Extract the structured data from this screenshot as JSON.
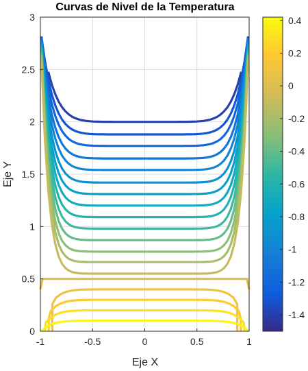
{
  "chart_data": {
    "type": "contour",
    "title": "Curvas de Nivel de la Temperatura",
    "xlabel": "Eje X",
    "ylabel": "Eje Y",
    "xlim": [
      -1,
      1
    ],
    "ylim": [
      0,
      3
    ],
    "xticks": [
      -1,
      -0.5,
      0,
      0.5,
      1
    ],
    "yticks": [
      0,
      0.5,
      1,
      1.5,
      2,
      2.5,
      3
    ],
    "xtick_labels": [
      "-1",
      "-0.5",
      "0",
      "0.5",
      "1"
    ],
    "ytick_labels": [
      "0",
      "0.5",
      "1",
      "1.5",
      "2",
      "2.5",
      "3"
    ],
    "grid": true,
    "colormap": "parula",
    "colorbar": {
      "limits": [
        -1.5,
        0.42
      ],
      "ticks": [
        0.4,
        0.2,
        0,
        -0.2,
        -0.4,
        -0.6,
        -0.8,
        -1,
        -1.2,
        -1.4
      ],
      "tick_labels": [
        "0.4",
        "0.2",
        "0",
        "-0.2",
        "-0.4",
        "-0.6",
        "-0.8",
        "-1",
        "-1.2",
        "-1.4"
      ]
    },
    "contours": [
      {
        "level": -1.4,
        "y_center": 2.0
      },
      {
        "level": -1.3,
        "y_center": 1.88
      },
      {
        "level": -1.2,
        "y_center": 1.77
      },
      {
        "level": -1.1,
        "y_center": 1.65
      },
      {
        "level": -1.0,
        "y_center": 1.54
      },
      {
        "level": -0.9,
        "y_center": 1.42
      },
      {
        "level": -0.8,
        "y_center": 1.31
      },
      {
        "level": -0.7,
        "y_center": 1.2
      },
      {
        "level": -0.6,
        "y_center": 1.09
      },
      {
        "level": -0.5,
        "y_center": 0.98
      },
      {
        "level": -0.4,
        "y_center": 0.87
      },
      {
        "level": -0.3,
        "y_center": 0.76
      },
      {
        "level": -0.2,
        "y_center": 0.66
      },
      {
        "level": -0.1,
        "y_center": 0.55
      },
      {
        "level": 0.0,
        "y_center": 0.5
      },
      {
        "level": 0.1,
        "y_center": 0.4
      },
      {
        "level": 0.2,
        "y_center": 0.3
      },
      {
        "level": 0.3,
        "y_center": 0.2
      },
      {
        "level": 0.4,
        "y_center": 0.1
      }
    ]
  }
}
